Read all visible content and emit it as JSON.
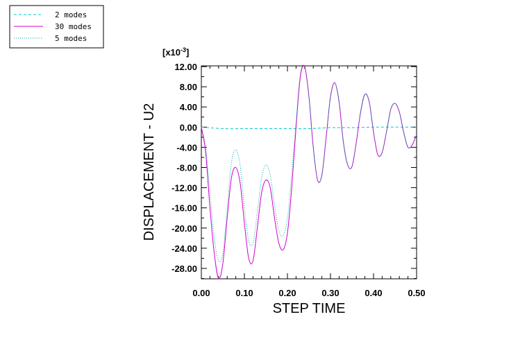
{
  "chart_data": {
    "type": "line",
    "xlabel": "STEP TIME",
    "ylabel": "DISPLACEMENT - U2",
    "y_scale_label": "[x10",
    "y_scale_exponent": "-3",
    "y_scale_close": "]",
    "xlim": [
      0.0,
      0.5
    ],
    "ylim": [
      -30.0,
      12.0
    ],
    "x_ticks": [
      "0.00",
      "0.10",
      "0.20",
      "0.30",
      "0.40",
      "0.50"
    ],
    "y_ticks": [
      "12.00",
      "8.00",
      "4.00",
      "0.00",
      "-4.00",
      "-8.00",
      "-12.00",
      "-16.00",
      "-20.00",
      "-24.00",
      "-28.00"
    ],
    "grid": false,
    "legend_position": "top-left",
    "series": [
      {
        "name": "2 modes",
        "color": "#00c8c8",
        "dash": "dashed",
        "x": [
          0.0,
          0.05,
          0.1,
          0.15,
          0.2,
          0.25,
          0.3,
          0.35,
          0.4,
          0.45,
          0.5
        ],
        "y": [
          0.0,
          -0.3,
          -0.3,
          -0.3,
          -0.3,
          -0.3,
          -0.1,
          -0.1,
          0.0,
          0.0,
          0.0
        ]
      },
      {
        "name": "30 modes",
        "color": "#d000d0",
        "dash": "solid",
        "x": [
          0.0,
          0.01,
          0.02,
          0.03,
          0.04,
          0.05,
          0.06,
          0.07,
          0.08,
          0.09,
          0.1,
          0.11,
          0.12,
          0.13,
          0.14,
          0.15,
          0.16,
          0.17,
          0.18,
          0.19,
          0.2,
          0.21,
          0.22,
          0.23,
          0.24,
          0.25,
          0.26,
          0.27,
          0.28,
          0.29,
          0.3,
          0.31,
          0.32,
          0.33,
          0.34,
          0.35,
          0.36,
          0.37,
          0.38,
          0.39,
          0.4,
          0.41,
          0.42,
          0.43,
          0.44,
          0.45,
          0.46,
          0.47,
          0.48,
          0.49,
          0.5
        ],
        "y": [
          0.0,
          -5.0,
          -16.0,
          -25.0,
          -30.0,
          -27.0,
          -18.0,
          -10.0,
          -8.0,
          -11.0,
          -19.0,
          -26.0,
          -26.5,
          -20.0,
          -13.0,
          -10.5,
          -12.0,
          -18.0,
          -23.0,
          -24.3,
          -21.0,
          -12.0,
          0.0,
          10.0,
          12.0,
          6.0,
          -4.0,
          -10.5,
          -9.5,
          -2.0,
          6.0,
          8.8,
          5.0,
          -3.0,
          -7.5,
          -7.8,
          -3.0,
          3.0,
          6.5,
          5.0,
          -1.0,
          -5.5,
          -5.0,
          -1.0,
          3.5,
          4.7,
          3.0,
          -1.0,
          -4.0,
          -3.5,
          -1.5
        ]
      },
      {
        "name": "5 modes",
        "color": "#00a0a0",
        "dash": "dotted",
        "x": [
          0.0,
          0.01,
          0.02,
          0.03,
          0.04,
          0.05,
          0.06,
          0.07,
          0.08,
          0.09,
          0.1,
          0.11,
          0.12,
          0.13,
          0.14,
          0.15,
          0.16,
          0.17,
          0.18,
          0.19,
          0.2,
          0.21,
          0.22,
          0.23,
          0.24,
          0.25,
          0.26,
          0.27,
          0.28,
          0.29,
          0.3,
          0.31,
          0.32,
          0.33,
          0.34,
          0.35,
          0.36,
          0.37,
          0.38,
          0.39,
          0.4,
          0.41,
          0.42,
          0.43,
          0.44,
          0.45,
          0.46,
          0.47,
          0.48,
          0.49,
          0.5
        ],
        "y": [
          0.0,
          -4.0,
          -13.0,
          -22.0,
          -26.5,
          -25.0,
          -16.0,
          -7.0,
          -4.5,
          -7.5,
          -16.0,
          -22.5,
          -23.0,
          -17.0,
          -10.0,
          -7.5,
          -9.5,
          -15.5,
          -20.5,
          -21.5,
          -18.0,
          -9.0,
          1.0,
          10.5,
          12.0,
          6.0,
          -4.0,
          -10.5,
          -9.5,
          -2.0,
          6.0,
          8.8,
          5.0,
          -3.0,
          -7.5,
          -7.8,
          -3.0,
          3.0,
          6.5,
          5.0,
          -1.0,
          -5.5,
          -5.0,
          -1.0,
          3.5,
          4.7,
          3.0,
          -1.0,
          -4.0,
          -3.5,
          -1.5
        ]
      }
    ]
  }
}
